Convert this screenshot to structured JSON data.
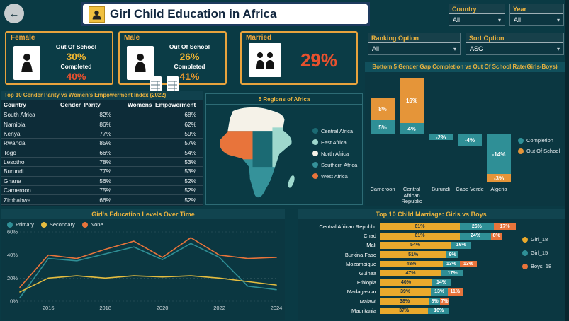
{
  "icons": {
    "back": "←",
    "chevron": "▾"
  },
  "header": {
    "title": "Girl Child Education in Africa",
    "filters": [
      {
        "label": "Country",
        "value": "All"
      },
      {
        "label": "Year",
        "value": "All"
      }
    ]
  },
  "kpi_cards": {
    "female": {
      "label": "Female",
      "out_of_school_label": "Out Of School",
      "out_of_school_value": "30%",
      "out_of_school_color": "#f2b632",
      "completed_label": "Completed",
      "completed_value": "40%",
      "completed_color": "#e8512e"
    },
    "male": {
      "label": "Male",
      "out_of_school_label": "Out Of School",
      "out_of_school_value": "26%",
      "out_of_school_color": "#f2b632",
      "completed_label": "Completed",
      "completed_value": "41%",
      "completed_color": "#ef9b2d"
    },
    "married": {
      "label": "Married",
      "value": "29%",
      "value_color": "#e8512e"
    }
  },
  "slicers": {
    "ranking": {
      "label": "Ranking Option",
      "value": "All"
    },
    "sort": {
      "label": "Sort Option",
      "value": "ASC"
    }
  },
  "parity_table": {
    "title": "Top 10 Gender Parity vs Women's Empowerment Index (2022)",
    "columns": [
      "Country",
      "Gender_Parity",
      "Womens_Empowerment"
    ],
    "rows": [
      [
        "South Africa",
        "82%",
        "68%"
      ],
      [
        "Namibia",
        "86%",
        "62%"
      ],
      [
        "Kenya",
        "77%",
        "59%"
      ],
      [
        "Rwanda",
        "85%",
        "57%"
      ],
      [
        "Togo",
        "66%",
        "54%"
      ],
      [
        "Lesotho",
        "78%",
        "53%"
      ],
      [
        "Burundi",
        "77%",
        "53%"
      ],
      [
        "Ghana",
        "56%",
        "52%"
      ],
      [
        "Cameroon",
        "75%",
        "52%"
      ],
      [
        "Zimbabwe",
        "66%",
        "52%"
      ]
    ]
  },
  "map_panel": {
    "title": "5 Regions of Africa",
    "legend": [
      {
        "label": "Central Africa",
        "color": "#1b6a73"
      },
      {
        "label": "East Africa",
        "color": "#9ed8cd"
      },
      {
        "label": "North Africa",
        "color": "#f5f2e8"
      },
      {
        "label": "Southern Africa",
        "color": "#35929a"
      },
      {
        "label": "West Africa",
        "color": "#e8743b"
      }
    ]
  },
  "colors": {
    "background": "#0a3a44",
    "accent_yellow": "#ecb43f",
    "card_border": "#e8a33d",
    "teal": "#2f8f96",
    "orange": "#e8743b",
    "yellow": "#e9a92c",
    "red": "#e8512e",
    "title_bar_bg": "#1d3a5e"
  },
  "chart_data": [
    {
      "id": "gender_gap",
      "type": "bar",
      "title": "Bottom 5 Gender Gap Completion vs Out Of School Rate(Girls-Boys)",
      "categories": [
        "Cameroon",
        "Central African Republic",
        "Burundi",
        "Cabo Verde",
        "Algeria"
      ],
      "series": [
        {
          "name": "Completion",
          "color": "#2f8f96",
          "values": [
            5,
            4,
            -2,
            -4,
            -14
          ]
        },
        {
          "name": "Out Of School",
          "color": "#e59539",
          "values": [
            8,
            16,
            0,
            0,
            -3
          ]
        }
      ],
      "value_suffix": "%",
      "legend_position": "right"
    },
    {
      "id": "education_levels",
      "type": "line",
      "title": "Girl's Education Levels Over Time",
      "x": [
        2015,
        2016,
        2017,
        2018,
        2019,
        2020,
        2021,
        2022,
        2023,
        2024
      ],
      "x_ticks": [
        2016,
        2018,
        2020,
        2022,
        2024
      ],
      "ylim": [
        0,
        60
      ],
      "y_ticks": [
        "0%",
        "20%",
        "40%",
        "60%"
      ],
      "grid": true,
      "legend_position": "top-left",
      "series": [
        {
          "name": "Primary",
          "color": "#2f8f96",
          "values": [
            3,
            37,
            35,
            41,
            47,
            36,
            50,
            38,
            13,
            10
          ]
        },
        {
          "name": "Secondary",
          "color": "#e5bd3f",
          "values": [
            8,
            20,
            22,
            20,
            22,
            21,
            22,
            20,
            17,
            14
          ]
        },
        {
          "name": "None",
          "color": "#e8743b",
          "values": [
            12,
            40,
            37,
            45,
            52,
            38,
            55,
            40,
            37,
            38
          ]
        }
      ]
    },
    {
      "id": "child_marriage",
      "type": "bar",
      "orientation": "horizontal",
      "title": "Top 10 Child Marriage: Girls vs Boys",
      "categories": [
        "Central African Republic",
        "Chad",
        "Mali",
        "Burkina Faso",
        "Mozambique",
        "Guinea",
        "Ethiopia",
        "Madagascar",
        "Malawi",
        "Mauritania"
      ],
      "series": [
        {
          "name": "Girl_18",
          "color": "#e9a92c",
          "values": [
            61,
            61,
            54,
            51,
            48,
            47,
            40,
            39,
            38,
            37
          ]
        },
        {
          "name": "Girl_15",
          "color": "#2f8f96",
          "values": [
            26,
            24,
            16,
            9,
            13,
            17,
            14,
            13,
            8,
            16
          ]
        },
        {
          "name": "Boys_18",
          "color": "#e8743b",
          "values": [
            17,
            8,
            0,
            0,
            13,
            0,
            0,
            11,
            7,
            0
          ]
        }
      ],
      "value_suffix": "%",
      "legend_position": "right"
    }
  ]
}
